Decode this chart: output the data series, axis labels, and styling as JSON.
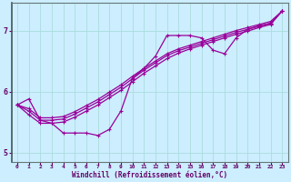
{
  "xlabel": "Windchill (Refroidissement éolien,°C)",
  "background_color": "#cceeff",
  "line_color": "#990099",
  "xlim": [
    -0.5,
    23.5
  ],
  "ylim": [
    4.85,
    7.45
  ],
  "yticks": [
    5,
    6,
    7
  ],
  "xticks": [
    0,
    1,
    2,
    3,
    4,
    5,
    6,
    7,
    8,
    9,
    10,
    11,
    12,
    13,
    14,
    15,
    16,
    17,
    18,
    19,
    20,
    21,
    22,
    23
  ],
  "line1_x": [
    0,
    1,
    2,
    3,
    4,
    5,
    6,
    7,
    8,
    9,
    10,
    11,
    12,
    13,
    14,
    15,
    16,
    17,
    18,
    19,
    20,
    21,
    22,
    23
  ],
  "line1_y": [
    5.78,
    5.88,
    5.53,
    5.48,
    5.32,
    5.32,
    5.32,
    5.28,
    5.38,
    5.68,
    6.22,
    6.38,
    6.58,
    6.92,
    6.92,
    6.92,
    6.88,
    6.68,
    6.62,
    6.88,
    7.02,
    7.08,
    7.12,
    7.32
  ],
  "line2_x": [
    0,
    1,
    2,
    3,
    4,
    5,
    6,
    7,
    8,
    9,
    10,
    11,
    12,
    13,
    14,
    15,
    16,
    17,
    18,
    19,
    20,
    21,
    22,
    23
  ],
  "line2_y": [
    5.78,
    5.62,
    5.48,
    5.48,
    5.5,
    5.58,
    5.68,
    5.78,
    5.9,
    6.02,
    6.16,
    6.3,
    6.42,
    6.54,
    6.63,
    6.7,
    6.76,
    6.82,
    6.88,
    6.94,
    6.99,
    7.05,
    7.1,
    7.32
  ],
  "line3_x": [
    0,
    1,
    2,
    3,
    4,
    5,
    6,
    7,
    8,
    9,
    10,
    11,
    12,
    13,
    14,
    15,
    16,
    17,
    18,
    19,
    20,
    21,
    22,
    23
  ],
  "line3_y": [
    5.78,
    5.68,
    5.53,
    5.53,
    5.55,
    5.63,
    5.73,
    5.83,
    5.95,
    6.07,
    6.21,
    6.35,
    6.47,
    6.59,
    6.67,
    6.73,
    6.79,
    6.85,
    6.91,
    6.97,
    7.02,
    7.07,
    7.12,
    7.32
  ],
  "line4_x": [
    0,
    1,
    2,
    3,
    4,
    5,
    6,
    7,
    8,
    9,
    10,
    11,
    12,
    13,
    14,
    15,
    16,
    17,
    18,
    19,
    20,
    21,
    22,
    23
  ],
  "line4_y": [
    5.78,
    5.72,
    5.57,
    5.57,
    5.59,
    5.67,
    5.77,
    5.87,
    5.99,
    6.11,
    6.25,
    6.38,
    6.5,
    6.62,
    6.7,
    6.76,
    6.82,
    6.88,
    6.94,
    7.0,
    7.05,
    7.1,
    7.15,
    7.32
  ],
  "grid_color": "#aadddd",
  "tick_color": "#660066",
  "xlabel_color": "#660066"
}
